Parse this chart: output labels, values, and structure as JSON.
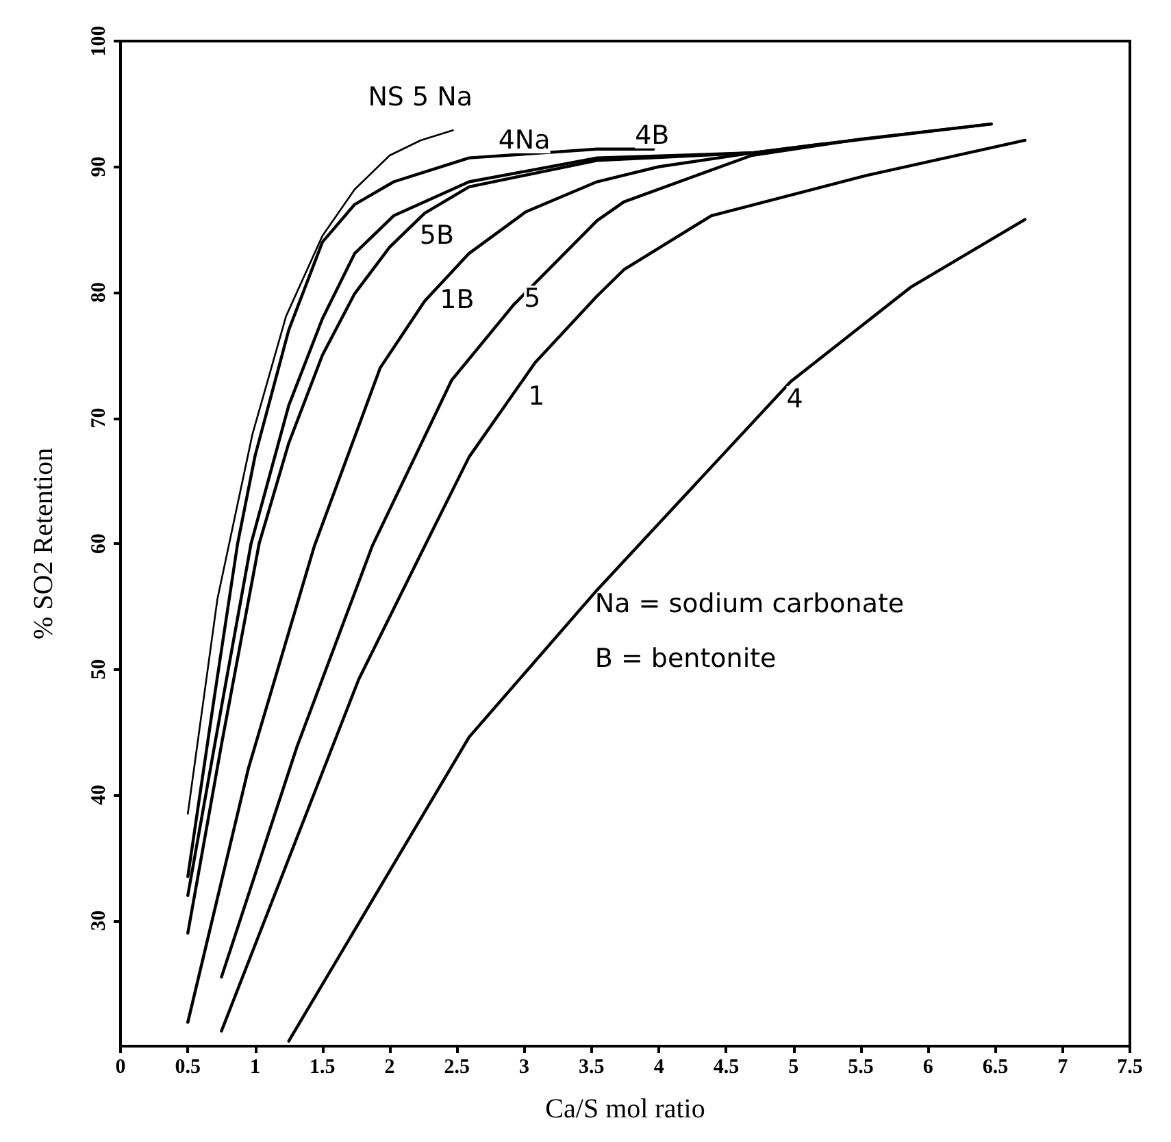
{
  "chart_data": {
    "type": "line",
    "xlabel": "Ca/S mol ratio",
    "ylabel": "% SO2 Retention",
    "xlim": [
      0,
      7.5
    ],
    "xticks": [
      0,
      0.5,
      1,
      1.5,
      2,
      2.5,
      3,
      3.5,
      4,
      4.5,
      5,
      5.5,
      6,
      6.5,
      7,
      7.5
    ],
    "ylim": [
      20,
      100
    ],
    "yticks": [
      30,
      40,
      50,
      60,
      70,
      80,
      90,
      100
    ],
    "line_style": "solid",
    "marker": "none",
    "series": [
      {
        "name": "NS 5 Na",
        "color": "#000000",
        "x": [
          0.5,
          0.72,
          0.98,
          1.23,
          1.5,
          1.74,
          2.0,
          2.23,
          2.47
        ],
        "values": [
          38.5,
          55.6,
          68.7,
          78.1,
          84.5,
          88.2,
          90.9,
          92.1,
          92.9
        ]
      },
      {
        "color": "#000000",
        "x": [
          0.5,
          0.7,
          0.87,
          1.0,
          1.25,
          1.5,
          1.74,
          2.03,
          2.59,
          3.54,
          3.96
        ],
        "values": [
          33.5,
          48,
          60,
          67,
          77,
          84,
          87,
          88.8,
          90.7,
          91.4,
          91.4
        ]
      },
      {
        "color": "#000000",
        "x": [
          0.5,
          0.75,
          0.97,
          1.25,
          1.5,
          1.74,
          2.03,
          2.59,
          3.54,
          4.69,
          5.21,
          6.47
        ],
        "values": [
          32,
          47,
          60,
          71,
          77.9,
          83.1,
          86.1,
          88.8,
          90.7,
          91.1,
          91.8,
          93.4
        ]
      },
      {
        "color": "#000000",
        "x": [
          0.5,
          0.75,
          1.03,
          1.25,
          1.5,
          1.74,
          2.0,
          2.26,
          2.59,
          3.54,
          4.69
        ],
        "values": [
          29,
          44,
          60,
          68,
          75,
          79.9,
          83.6,
          86.3,
          88.4,
          90.5,
          91.1
        ]
      },
      {
        "color": "#000000",
        "x": [
          0.5,
          0.95,
          1.44,
          1.93,
          2.26,
          2.59,
          3.01,
          3.54,
          4.0,
          4.69,
          5.21
        ],
        "values": [
          21.9,
          42.1,
          59.8,
          74,
          79.3,
          83.1,
          86.4,
          88.8,
          90,
          91.1,
          91.8
        ]
      },
      {
        "color": "#000000",
        "x": [
          0.75,
          1.31,
          1.87,
          2.46,
          2.92,
          3.54,
          3.74,
          4.69,
          5.5,
          6.47
        ],
        "values": [
          25.5,
          43.8,
          59.8,
          73,
          79,
          85.7,
          87.2,
          90.9,
          92.2,
          93.4
        ]
      },
      {
        "color": "#000000",
        "x": [
          0.75,
          1.77,
          2.26,
          2.59,
          3.08,
          3.54,
          3.74,
          4.39,
          5.54,
          6.72
        ],
        "values": [
          21.2,
          49.2,
          59.8,
          66.9,
          74.4,
          79.7,
          81.8,
          86.1,
          89.3,
          92.1
        ]
      },
      {
        "color": "#000000",
        "x": [
          1.25,
          2.59,
          3.54,
          4.98,
          5.87,
          6.72
        ],
        "values": [
          20.4,
          44.6,
          56.3,
          72.9,
          80.4,
          85.8
        ]
      }
    ],
    "annotations": [
      {
        "text": "4Na",
        "x": 3.0,
        "y": 92.1
      },
      {
        "text": "4B",
        "x": 3.95,
        "y": 92.5
      },
      {
        "text": "5B",
        "x": 2.35,
        "y": 84.5
      },
      {
        "text": "1B",
        "x": 2.5,
        "y": 79.4
      },
      {
        "text": "5",
        "x": 3.06,
        "y": 79.5
      },
      {
        "text": "1",
        "x": 3.09,
        "y": 71.7
      },
      {
        "text": "4",
        "x": 5.01,
        "y": 71.5
      },
      "Na = sodium carbonate",
      "B = bentonite"
    ]
  }
}
